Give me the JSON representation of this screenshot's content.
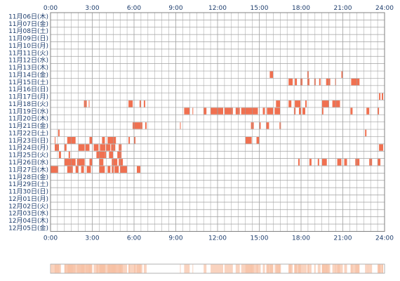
{
  "chart_data": {
    "type": "heatmap",
    "x_ticks": [
      "0:00",
      "3:00",
      "6:00",
      "9:00",
      "12:00",
      "15:00",
      "18:00",
      "21:00",
      "24:00"
    ],
    "x_range_hours": [
      0,
      24
    ],
    "grid": true,
    "colors": {
      "active": "#f07050",
      "grid": "#a0a0a0",
      "text": "#1c3c6c",
      "summary": "#f6c0a4"
    },
    "rows": [
      {
        "label": "11月06日(木)",
        "segments": []
      },
      {
        "label": "11月07日(金)",
        "segments": []
      },
      {
        "label": "11月08日(土)",
        "segments": []
      },
      {
        "label": "11月09日(日)",
        "segments": []
      },
      {
        "label": "11月10日(月)",
        "segments": []
      },
      {
        "label": "11月11日(火)",
        "segments": []
      },
      {
        "label": "11月12日(水)",
        "segments": []
      },
      {
        "label": "11月13日(木)",
        "segments": []
      },
      {
        "label": "11月14日(金)",
        "segments": [
          [
            15.75,
            16.0
          ],
          [
            18.45,
            18.55
          ],
          [
            20.9,
            21.0
          ]
        ]
      },
      {
        "label": "11月15日(土)",
        "segments": [
          [
            17.1,
            17.4
          ],
          [
            17.55,
            17.7
          ],
          [
            17.95,
            18.1
          ],
          [
            18.45,
            18.6
          ],
          [
            18.95,
            19.05
          ],
          [
            19.3,
            19.4
          ],
          [
            19.8,
            20.1
          ],
          [
            20.45,
            20.5
          ],
          [
            21.6,
            22.2
          ]
        ]
      },
      {
        "label": "11月16日(日)",
        "segments": []
      },
      {
        "label": "11月17日(月)",
        "segments": [
          [
            23.6,
            23.7
          ],
          [
            23.8,
            23.9
          ]
        ]
      },
      {
        "label": "11月18日(火)",
        "segments": [
          [
            2.4,
            2.6
          ],
          [
            2.75,
            2.8
          ],
          [
            5.6,
            5.9
          ],
          [
            6.4,
            6.5
          ],
          [
            6.7,
            6.8
          ],
          [
            16.2,
            16.5
          ],
          [
            17.1,
            17.3
          ],
          [
            17.55,
            17.95
          ],
          [
            18.3,
            18.4
          ],
          [
            19.5,
            20.0
          ],
          [
            20.25,
            20.8
          ]
        ]
      },
      {
        "label": "11月19日(水)",
        "segments": [
          [
            9.6,
            10.0
          ],
          [
            10.2,
            10.25
          ],
          [
            11.0,
            11.2
          ],
          [
            11.5,
            12.4
          ],
          [
            12.5,
            13.1
          ],
          [
            13.3,
            13.6
          ],
          [
            13.7,
            14.9
          ],
          [
            15.25,
            15.4
          ],
          [
            15.55,
            16.0
          ],
          [
            16.1,
            16.5
          ],
          [
            17.5,
            17.6
          ],
          [
            17.85,
            18.0
          ],
          [
            18.1,
            18.3
          ],
          [
            19.5,
            19.6
          ],
          [
            21.55,
            21.7
          ],
          [
            22.7,
            22.9
          ],
          [
            23.5,
            23.6
          ]
        ]
      },
      {
        "label": "11月20日(木)",
        "segments": []
      },
      {
        "label": "11月21日(金)",
        "segments": [
          [
            5.9,
            6.6
          ],
          [
            6.8,
            6.9
          ],
          [
            9.3,
            9.35
          ],
          [
            14.4,
            14.6
          ],
          [
            15.0,
            15.1
          ],
          [
            15.5,
            15.7
          ],
          [
            16.45,
            16.55
          ]
        ]
      },
      {
        "label": "11月22日(土)",
        "segments": [
          [
            0.55,
            0.65
          ],
          [
            22.6,
            22.7
          ]
        ]
      },
      {
        "label": "11月23日(日)",
        "segments": [
          [
            0.3,
            0.35
          ],
          [
            1.2,
            1.8
          ],
          [
            2.8,
            3.0
          ],
          [
            3.7,
            3.9
          ],
          [
            4.1,
            4.7
          ],
          [
            5.6,
            5.7
          ],
          [
            6.0,
            6.1
          ],
          [
            14.0,
            14.45
          ],
          [
            14.8,
            15.0
          ]
        ]
      },
      {
        "label": "11月24日(月)",
        "segments": [
          [
            0.3,
            0.6
          ],
          [
            1.0,
            1.15
          ],
          [
            2.0,
            2.45
          ],
          [
            2.5,
            2.8
          ],
          [
            3.1,
            3.45
          ],
          [
            3.55,
            3.95
          ],
          [
            4.0,
            4.3
          ],
          [
            4.35,
            4.65
          ],
          [
            4.9,
            5.1
          ],
          [
            23.6,
            23.9
          ]
        ]
      },
      {
        "label": "11月25日(火)",
        "segments": [
          [
            0.6,
            0.75
          ],
          [
            1.3,
            1.4
          ],
          [
            3.3,
            3.9
          ],
          [
            3.9,
            4.0
          ],
          [
            4.2,
            4.5
          ],
          [
            4.8,
            5.1
          ]
        ]
      },
      {
        "label": "11月26日(水)",
        "segments": [
          [
            1.0,
            1.8
          ],
          [
            1.9,
            2.45
          ],
          [
            2.8,
            3.0
          ],
          [
            3.5,
            3.8
          ],
          [
            4.4,
            4.8
          ],
          [
            4.9,
            5.2
          ],
          [
            17.8,
            17.9
          ],
          [
            18.6,
            18.75
          ],
          [
            19.2,
            19.3
          ],
          [
            19.5,
            19.85
          ],
          [
            20.6,
            20.9
          ],
          [
            21.1,
            21.3
          ],
          [
            21.9,
            22.2
          ],
          [
            22.9,
            23.1
          ],
          [
            23.5,
            23.7
          ]
        ]
      },
      {
        "label": "11月27日(木)",
        "segments": [
          [
            0.0,
            0.55
          ],
          [
            1.2,
            1.6
          ],
          [
            1.8,
            2.0
          ],
          [
            2.2,
            2.4
          ],
          [
            2.6,
            2.9
          ],
          [
            3.5,
            3.9
          ],
          [
            4.1,
            4.3
          ],
          [
            4.4,
            4.55
          ],
          [
            4.6,
            4.9
          ],
          [
            5.0,
            5.5
          ],
          [
            6.2,
            6.45
          ]
        ]
      },
      {
        "label": "11月28日(金)",
        "segments": []
      },
      {
        "label": "11月29日(土)",
        "segments": []
      },
      {
        "label": "11月30日(日)",
        "segments": []
      },
      {
        "label": "12月01日(月)",
        "segments": []
      },
      {
        "label": "12月02日(火)",
        "segments": []
      },
      {
        "label": "12月03日(水)",
        "segments": []
      },
      {
        "label": "12月04日(木)",
        "segments": []
      },
      {
        "label": "12月05日(金)",
        "segments": []
      }
    ]
  }
}
